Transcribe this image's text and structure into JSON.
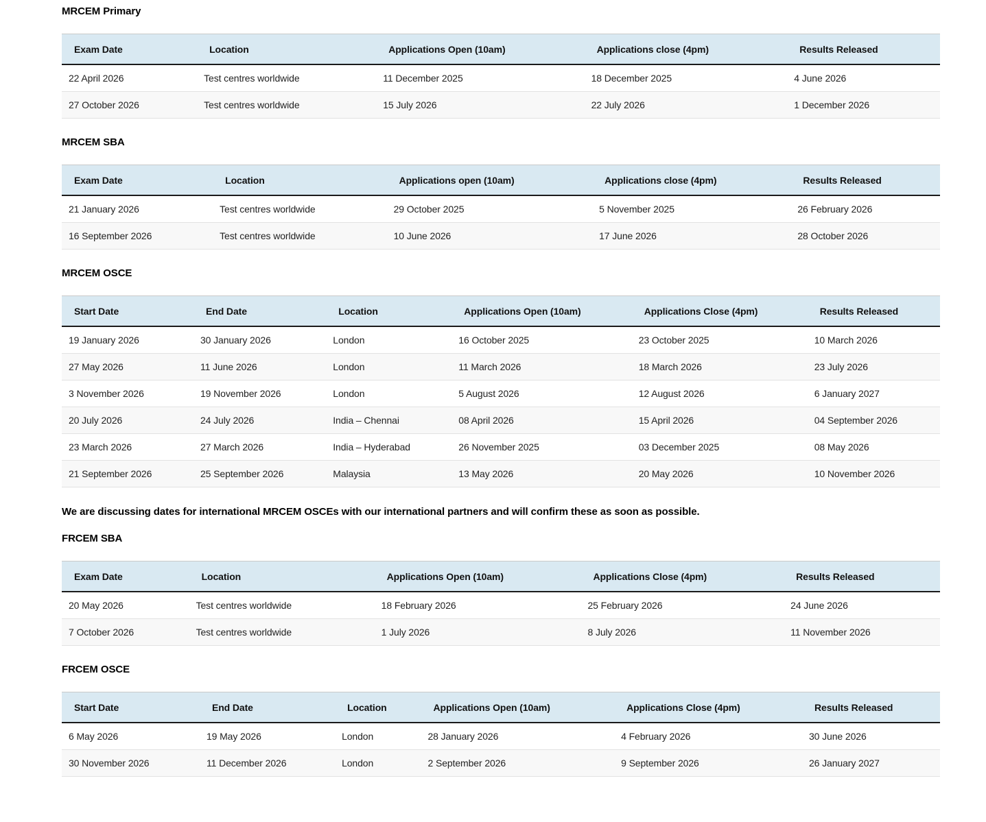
{
  "note": "We are discussing dates for international MRCEM OSCEs with our international partners and will confirm these as soon as possible.",
  "colors": {
    "header_bg": "#d9e9f2",
    "header_rule": "#1a1a1a",
    "row_rule": "#e2e2e2",
    "row_alt_bg": "#f8f8f8",
    "text": "#222222"
  },
  "sections": [
    {
      "id": "mrcem-primary",
      "title": "MRCEM Primary",
      "columns": [
        "Exam Date",
        "Location",
        "Applications Open (10am)",
        "Applications close (4pm)",
        "Results Released"
      ],
      "col_widths": [
        "15.4%",
        "20.4%",
        "23.7%",
        "23.1%",
        "17.4%"
      ],
      "rows": [
        [
          "22 April 2026",
          "Test centres worldwide",
          "11 December 2025",
          "18 December 2025",
          "4 June 2026"
        ],
        [
          "27 October 2026",
          "Test centres worldwide",
          "15 July 2026",
          "22 July 2026",
          "1 December 2026"
        ]
      ]
    },
    {
      "id": "mrcem-sba",
      "title": "MRCEM SBA",
      "columns": [
        "Exam Date",
        "Location",
        "Applications open (10am)",
        "Applications close (4pm)",
        "Results Released"
      ],
      "col_widths": [
        "17.2%",
        "19.8%",
        "23.4%",
        "22.6%",
        "17.0%"
      ],
      "rows": [
        [
          "21 January 2026",
          "Test centres worldwide",
          "29 October 2025",
          "5 November 2025",
          "26 February 2026"
        ],
        [
          "16 September 2026",
          "Test centres worldwide",
          "10 June 2026",
          "17 June 2026",
          "28 October 2026"
        ]
      ]
    },
    {
      "id": "mrcem-osce",
      "title": "MRCEM OSCE",
      "columns": [
        "Start Date",
        "End Date",
        "Location",
        "Applications Open (10am)",
        "Applications Close (4pm)",
        "Results Released"
      ],
      "col_widths": [
        "15.0%",
        "15.1%",
        "14.3%",
        "20.5%",
        "20.0%",
        "15.1%"
      ],
      "rows": [
        [
          "19 January 2026",
          "30 January 2026",
          "London",
          "16 October 2025",
          "23 October 2025",
          "10 March 2026"
        ],
        [
          "27 May 2026",
          "11 June 2026",
          "London",
          "11 March 2026",
          "18 March 2026",
          "23 July 2026"
        ],
        [
          "3 November 2026",
          "19 November 2026",
          "London",
          "5 August 2026",
          "12 August 2026",
          "6 January 2027"
        ],
        [
          "20 July 2026",
          "24 July 2026",
          "India – Chennai",
          "08 April 2026",
          "15 April 2026",
          "04 September 2026"
        ],
        [
          "23 March 2026",
          "27 March 2026",
          "India – Hyderabad",
          "26 November 2025",
          "03 December 2025",
          "08 May 2026"
        ],
        [
          "21 September 2026",
          "25 September 2026",
          "Malaysia",
          "13 May 2026",
          "20 May 2026",
          "10 November 2026"
        ]
      ]
    },
    {
      "id": "frcem-sba",
      "title": "FRCEM SBA",
      "columns": [
        "Exam Date",
        "Location",
        "Applications Open (10am)",
        "Applications Close (4pm)",
        "Results Released"
      ],
      "col_widths": [
        "14.5%",
        "21.1%",
        "23.5%",
        "23.1%",
        "17.8%"
      ],
      "rows": [
        [
          "20 May 2026",
          "Test centres worldwide",
          "18 February 2026",
          "25 February 2026",
          "24 June 2026"
        ],
        [
          "7 October 2026",
          "Test centres worldwide",
          "1 July 2026",
          "8 July 2026",
          "11 November 2026"
        ]
      ]
    },
    {
      "id": "frcem-osce",
      "title": "FRCEM OSCE",
      "columns": [
        "Start Date",
        "End Date",
        "Location",
        "Applications Open (10am)",
        "Applications Close (4pm)",
        "Results Released"
      ],
      "col_widths": [
        "15.7%",
        "15.4%",
        "9.8%",
        "22.0%",
        "21.4%",
        "15.7%"
      ],
      "rows": [
        [
          "6 May 2026",
          "19 May 2026",
          "London",
          "28 January 2026",
          "4 February 2026",
          "30 June 2026"
        ],
        [
          "30 November 2026",
          "11 December 2026",
          "London",
          "2 September 2026",
          "9 September 2026",
          "26 January 2027"
        ]
      ]
    }
  ]
}
